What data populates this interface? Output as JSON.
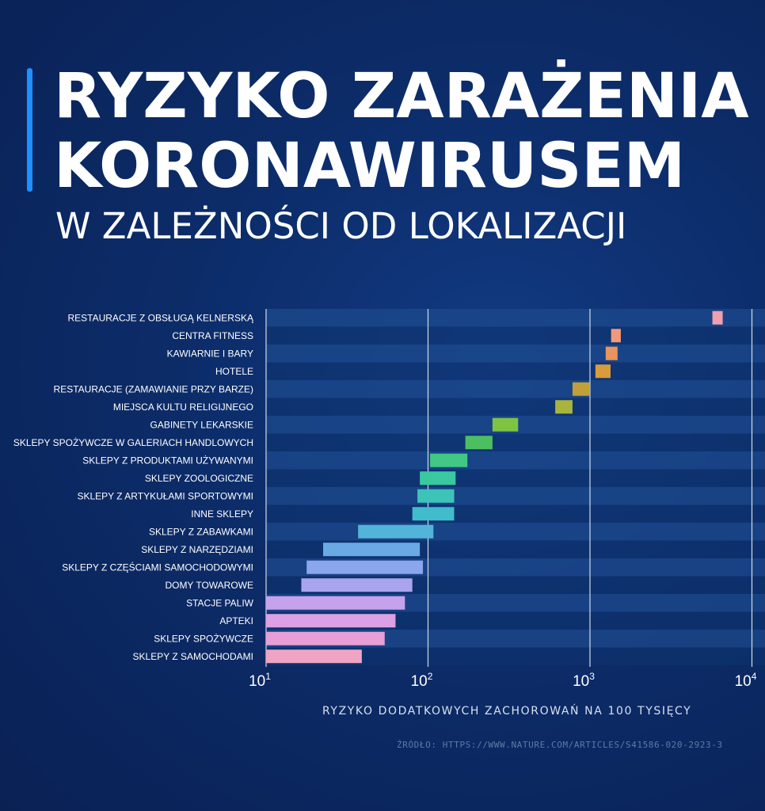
{
  "header": {
    "title_line1": "RYZYKO ZARAŻENIA",
    "title_line2": "KORONAWIRUSEM",
    "subtitle": "W ZALEŻNOŚCI OD LOKALIZACJI"
  },
  "footer": {
    "source": "ŹRÓDŁO: HTTPS://WWW.NATURE.COM/ARTICLES/S41586-020-2923-3"
  },
  "colors": {
    "background": "#0c2c69",
    "accent": "#1e90ff",
    "row_band": "#1c4a8c",
    "gridline": "#d0daea"
  },
  "chart_data": {
    "type": "bar",
    "orientation": "horizontal",
    "title": "RYZYKO ZARAŻENIA KORONAWIRUSEM",
    "subtitle": "W ZALEŻNOŚCI OD LOKALIZACJI",
    "xlabel": "RYZYKO DODATKOWYCH ZACHOROWAŃ NA 100 TYSIĘCY",
    "x_scale": "log",
    "xlim": [
      10,
      10000
    ],
    "xticks": [
      {
        "base": "10",
        "exp": "1"
      },
      {
        "base": "10",
        "exp": "2"
      },
      {
        "base": "10",
        "exp": "3"
      },
      {
        "base": "10",
        "exp": "4"
      }
    ],
    "grid": true,
    "categories": [
      "RESTAURACJE Z OBSŁUGĄ KELNERSKĄ",
      "CENTRA FITNESS",
      "KAWIARNIE I BARY",
      "HOTELE",
      "RESTAURACJE (ZAMAWIANIE PRZY BARZE)",
      "MIEJSCA KULTU RELIGIJNEGO",
      "GABINETY LEKARSKIE",
      "SKLEPY SPOŻYWCZE W GALERIACH HANDLOWYCH",
      "SKLEPY Z PRODUKTAMI UŻYWANYMI",
      "SKLEPY ZOOLOGICZNE",
      "SKLEPY Z ARTYKUŁAMI SPORTOWYMI",
      "INNE SKLEPY",
      "SKLEPY Z ZABAWKAMI",
      "SKLEPY Z NARZĘDZIAMI",
      "SKLEPY Z CZĘŚCIAMI SAMOCHODOWYMI",
      "DOMY TOWAROWE",
      "STACJE PALIW",
      "APTEKI",
      "SKLEPY SPOŻYWCZE",
      "SKLEPY Z SAMOCHODAMI"
    ],
    "ranges": [
      [
        5700,
        6600
      ],
      [
        1350,
        1550
      ],
      [
        1250,
        1480
      ],
      [
        1080,
        1340
      ],
      [
        780,
        990
      ],
      [
        610,
        780
      ],
      [
        250,
        360
      ],
      [
        170,
        250
      ],
      [
        103,
        175
      ],
      [
        89,
        148
      ],
      [
        86,
        145
      ],
      [
        80,
        145
      ],
      [
        37,
        108
      ],
      [
        22.5,
        89
      ],
      [
        17.8,
        93
      ],
      [
        16.5,
        80
      ],
      [
        10,
        72
      ],
      [
        10,
        63
      ],
      [
        10,
        54
      ],
      [
        10,
        39
      ]
    ],
    "bar_colors": [
      "#f0a0b0",
      "#f09a7a",
      "#e8945e",
      "#d89c3c",
      "#c0a038",
      "#a8b43c",
      "#7ec442",
      "#4cc060",
      "#42c884",
      "#3ac8a0",
      "#3cc4b8",
      "#40bccc",
      "#52b4d8",
      "#6aaae4",
      "#8aa6ec",
      "#aaa4ee",
      "#c6a2ec",
      "#dca0e4",
      "#e89ed6",
      "#f0a4c4"
    ]
  }
}
